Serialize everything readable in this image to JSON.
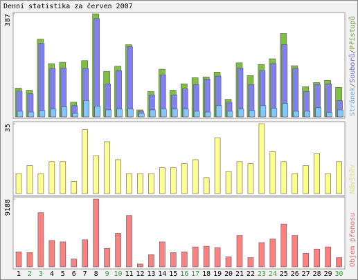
{
  "chart_data": [
    {
      "type": "bar",
      "title": "Denní statistika za červen 2007",
      "ylim": [
        0,
        387
      ],
      "yticks": [
        387
      ],
      "legend_separator": "/",
      "series": [
        {
          "name": "Stránek",
          "color": "#80c8ff",
          "values": [
            21,
            18,
            24,
            29,
            37,
            13,
            61,
            40,
            26,
            29,
            29,
            13,
            26,
            29,
            29,
            29,
            21,
            18,
            42,
            21,
            29,
            24,
            42,
            32,
            50,
            21,
            21,
            34,
            16,
            26
          ]
        },
        {
          "name": "Souborů",
          "color": "#8080f0",
          "values": [
            97,
            87,
            276,
            182,
            184,
            42,
            182,
            369,
            124,
            174,
            263,
            21,
            82,
            158,
            82,
            105,
            121,
            142,
            153,
            55,
            184,
            121,
            174,
            200,
            271,
            182,
            95,
            121,
            124,
            61
          ]
        },
        {
          "name": "Přístupů",
          "color": "#80c040",
          "values": [
            108,
            100,
            292,
            200,
            205,
            55,
            211,
            387,
            171,
            190,
            271,
            26,
            95,
            179,
            100,
            124,
            147,
            150,
            168,
            66,
            203,
            155,
            197,
            218,
            313,
            192,
            113,
            129,
            137,
            111
          ]
        }
      ]
    },
    {
      "type": "bar",
      "ylim": [
        0,
        35
      ],
      "yticks": [
        35
      ],
      "series": [
        {
          "name": "Návštěv",
          "color": "#ffff90",
          "values": [
            10,
            14,
            10,
            16,
            16,
            6,
            32,
            19,
            26,
            17,
            10,
            10,
            10,
            13,
            13,
            15,
            17,
            8,
            28,
            11,
            16,
            15,
            35,
            21,
            16,
            10,
            14,
            20,
            10,
            16
          ]
        }
      ]
    },
    {
      "type": "bar",
      "ylim": [
        0,
        9188
      ],
      "yticks": [
        9188
      ],
      "series": [
        {
          "name": "Objem přenosu",
          "color": "#ff8080",
          "values": [
            2031,
            1934,
            7351,
            3578,
            3385,
            1064,
            3675,
            9188,
            2515,
            4547,
            6964,
            387,
            1644,
            3385,
            1934,
            2031,
            2708,
            2805,
            2611,
            1354,
            4256,
            1257,
            3289,
            3772,
            5803,
            4256,
            1838,
            2418,
            2708,
            1257
          ]
        }
      ],
      "categories": [
        "1",
        "2",
        "3",
        "4",
        "5",
        "6",
        "7",
        "8",
        "9",
        "10",
        "11",
        "12",
        "13",
        "14",
        "15",
        "16",
        "17",
        "18",
        "19",
        "20",
        "21",
        "22",
        "23",
        "24",
        "25",
        "26",
        "27",
        "28",
        "29",
        "30"
      ],
      "category_colors": [
        "#000",
        "#3a9a3a",
        "#3a9a3a",
        "#000",
        "#000",
        "#000",
        "#000",
        "#000",
        "#3a9a3a",
        "#3a9a3a",
        "#000",
        "#000",
        "#000",
        "#000",
        "#000",
        "#3a9a3a",
        "#3a9a3a",
        "#000",
        "#000",
        "#000",
        "#000",
        "#000",
        "#3a9a3a",
        "#3a9a3a",
        "#000",
        "#000",
        "#000",
        "#000",
        "#000",
        "#3a9a3a"
      ]
    }
  ]
}
